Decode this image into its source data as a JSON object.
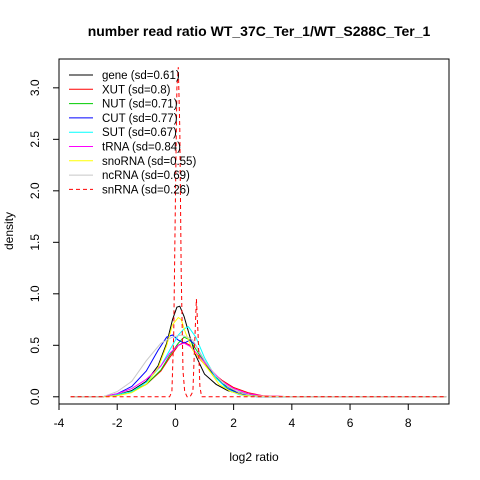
{
  "chart_data": {
    "type": "line",
    "title": "number read ratio WT_37C_Ter_1/WT_S288C_Ter_1",
    "xlabel": "log2 ratio",
    "ylabel": "density",
    "xlim": [
      -4.0,
      9.4
    ],
    "ylim": [
      -0.07,
      3.28
    ],
    "x_ticks": [
      -4,
      -2,
      0,
      2,
      4,
      6,
      8
    ],
    "y_ticks": [
      0.0,
      0.5,
      1.0,
      1.5,
      2.0,
      2.5,
      3.0
    ],
    "x_tick_labels": [
      "-4",
      "-2",
      "0",
      "2",
      "4",
      "6",
      "8"
    ],
    "y_tick_labels": [
      "0.0",
      "0.5",
      "1.0",
      "1.5",
      "2.0",
      "2.5",
      "3.0"
    ],
    "grid": false,
    "legend_position": "top-left",
    "series": [
      {
        "name": "gene (sd=0.61)",
        "color": "#000000",
        "dashed": false,
        "x": [
          -3.6,
          -2.5,
          -2.0,
          -1.5,
          -1.0,
          -0.6,
          -0.3,
          -0.1,
          0.05,
          0.15,
          0.3,
          0.5,
          0.7,
          1.0,
          1.4,
          1.8,
          2.2,
          2.6,
          3.0,
          4.0,
          9.3
        ],
        "y": [
          0.0,
          0.0,
          0.02,
          0.06,
          0.15,
          0.3,
          0.52,
          0.75,
          0.87,
          0.88,
          0.78,
          0.58,
          0.4,
          0.22,
          0.12,
          0.06,
          0.03,
          0.01,
          0.0,
          0.0,
          0.0
        ]
      },
      {
        "name": "XUT (sd=0.8)",
        "color": "#ff0000",
        "dashed": false,
        "x": [
          -3.6,
          -2.5,
          -2.0,
          -1.5,
          -1.0,
          -0.5,
          -0.2,
          0.1,
          0.3,
          0.5,
          0.8,
          1.2,
          1.6,
          2.0,
          2.5,
          3.0,
          4.0,
          9.3
        ],
        "y": [
          0.0,
          0.0,
          0.02,
          0.05,
          0.12,
          0.25,
          0.38,
          0.5,
          0.53,
          0.5,
          0.38,
          0.25,
          0.16,
          0.09,
          0.04,
          0.01,
          0.0,
          0.0
        ]
      },
      {
        "name": "NUT (sd=0.71)",
        "color": "#00cc00",
        "dashed": false,
        "x": [
          -3.6,
          -2.5,
          -2.0,
          -1.5,
          -1.0,
          -0.5,
          -0.2,
          0.1,
          0.3,
          0.5,
          0.8,
          1.2,
          1.6,
          2.0,
          2.5,
          3.0,
          4.0,
          9.3
        ],
        "y": [
          0.0,
          0.0,
          0.02,
          0.05,
          0.12,
          0.26,
          0.4,
          0.52,
          0.58,
          0.55,
          0.42,
          0.25,
          0.13,
          0.06,
          0.02,
          0.0,
          0.0,
          0.0
        ]
      },
      {
        "name": "CUT (sd=0.77)",
        "color": "#0000ff",
        "dashed": false,
        "x": [
          -3.6,
          -2.5,
          -2.0,
          -1.5,
          -1.0,
          -0.6,
          -0.3,
          -0.1,
          0.1,
          0.3,
          0.5,
          0.7,
          1.0,
          1.4,
          1.8,
          2.2,
          2.8,
          4.0,
          9.3
        ],
        "y": [
          0.0,
          0.0,
          0.03,
          0.1,
          0.25,
          0.45,
          0.58,
          0.6,
          0.55,
          0.52,
          0.55,
          0.5,
          0.35,
          0.18,
          0.08,
          0.03,
          0.0,
          0.0,
          0.0
        ]
      },
      {
        "name": "SUT (sd=0.67)",
        "color": "#00ffff",
        "dashed": false,
        "x": [
          -3.6,
          -2.5,
          -2.0,
          -1.5,
          -1.0,
          -0.5,
          -0.2,
          0.1,
          0.3,
          0.45,
          0.7,
          1.0,
          1.4,
          1.8,
          2.2,
          2.8,
          4.0,
          9.3
        ],
        "y": [
          0.0,
          0.0,
          0.02,
          0.05,
          0.14,
          0.3,
          0.45,
          0.6,
          0.66,
          0.68,
          0.58,
          0.38,
          0.18,
          0.07,
          0.02,
          0.0,
          0.0,
          0.0
        ]
      },
      {
        "name": "tRNA (sd=0.84)",
        "color": "#ff00ff",
        "dashed": false,
        "x": [
          -3.6,
          -2.5,
          -2.0,
          -1.5,
          -1.0,
          -0.5,
          -0.2,
          0.1,
          0.3,
          0.5,
          0.8,
          1.2,
          1.6,
          2.0,
          2.5,
          3.0,
          4.0,
          9.3
        ],
        "y": [
          0.0,
          0.0,
          0.03,
          0.08,
          0.17,
          0.3,
          0.42,
          0.5,
          0.52,
          0.49,
          0.4,
          0.27,
          0.15,
          0.08,
          0.03,
          0.01,
          0.0,
          0.0
        ]
      },
      {
        "name": "snoRNA (sd=0.55)",
        "color": "#ffff00",
        "dashed": false,
        "x": [
          -3.6,
          -2.5,
          -2.0,
          -1.5,
          -1.0,
          -0.6,
          -0.3,
          -0.1,
          0.1,
          0.2,
          0.35,
          0.6,
          0.9,
          1.2,
          1.5,
          1.9,
          2.4,
          4.0,
          9.3
        ],
        "y": [
          0.0,
          0.0,
          0.01,
          0.04,
          0.12,
          0.28,
          0.5,
          0.7,
          0.77,
          0.75,
          0.62,
          0.45,
          0.35,
          0.24,
          0.12,
          0.05,
          0.01,
          0.0,
          0.0
        ]
      },
      {
        "name": "ncRNA (sd=0.69)",
        "color": "#c8c8c8",
        "dashed": false,
        "x": [
          -3.6,
          -2.5,
          -2.0,
          -1.5,
          -1.0,
          -0.5,
          -0.1,
          0.2,
          0.4,
          0.6,
          0.8,
          1.0,
          1.4,
          1.8,
          2.2,
          2.8,
          4.0,
          9.3
        ],
        "y": [
          0.0,
          0.0,
          0.05,
          0.15,
          0.35,
          0.52,
          0.58,
          0.6,
          0.58,
          0.55,
          0.45,
          0.35,
          0.2,
          0.1,
          0.04,
          0.0,
          0.0,
          0.0
        ]
      },
      {
        "name": "snRNA (sd=0.26)",
        "color": "#ff0000",
        "dashed": true,
        "x": [
          -3.6,
          -0.3,
          -0.2,
          -0.12,
          -0.06,
          0.0,
          0.05,
          0.1,
          0.15,
          0.2,
          0.26,
          0.32,
          0.4,
          0.5,
          0.6,
          0.66,
          0.72,
          0.78,
          0.84,
          0.9,
          1.0,
          9.3
        ],
        "y": [
          0.0,
          0.0,
          0.0,
          0.05,
          0.6,
          1.9,
          3.0,
          3.2,
          2.6,
          1.2,
          0.25,
          0.05,
          0.0,
          0.0,
          0.05,
          0.5,
          0.95,
          0.6,
          0.1,
          0.0,
          0.0,
          0.0
        ]
      }
    ]
  }
}
